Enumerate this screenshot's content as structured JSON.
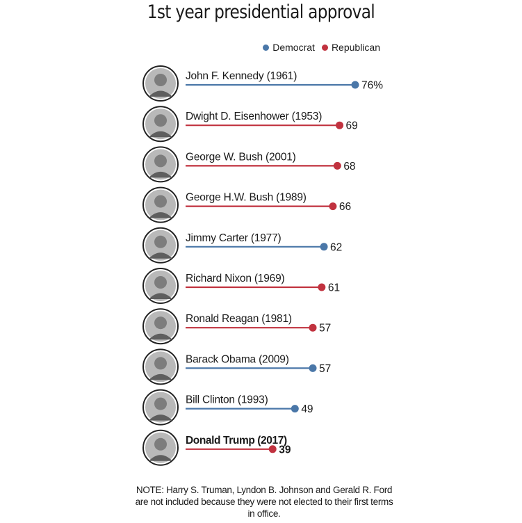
{
  "chart_data": {
    "type": "bar",
    "title": "1st year presidential approval",
    "legend": [
      {
        "name": "Democrat",
        "color": "#4a77a8"
      },
      {
        "name": "Republican",
        "color": "#c1323f"
      }
    ],
    "legend_position": "top-right",
    "grid": false,
    "categories": [
      "John F. Kennedy (1961)",
      "Dwight D. Eisenhower (1953)",
      "George W. Bush (2001)",
      "George H.W. Bush (1989)",
      "Jimmy Carter (1977)",
      "Richard Nixon (1969)",
      "Ronald Reagan (1981)",
      "Barack Obama (2009)",
      "Bill Clinton (1993)",
      "Donald Trump (2017)"
    ],
    "values": [
      76,
      69,
      68,
      66,
      62,
      61,
      57,
      57,
      49,
      39
    ],
    "value_labels": [
      "76%",
      "69",
      "68",
      "66",
      "62",
      "61",
      "57",
      "57",
      "49",
      "39"
    ],
    "party": [
      "Democrat",
      "Republican",
      "Republican",
      "Republican",
      "Democrat",
      "Republican",
      "Republican",
      "Democrat",
      "Democrat",
      "Republican"
    ],
    "highlight": "Donald Trump (2017)",
    "xlim": [
      0,
      76
    ]
  },
  "note": "NOTE: Harry S. Truman, Lyndon B. Johnson and Gerald R. Ford are not included because they were not elected to their first terms in office.",
  "colors": {
    "democrat": "#4a77a8",
    "republican": "#c1323f",
    "text": "#1a1a1a",
    "avatar_ring": "#222222",
    "avatar_fill": "#9a9a9a"
  }
}
